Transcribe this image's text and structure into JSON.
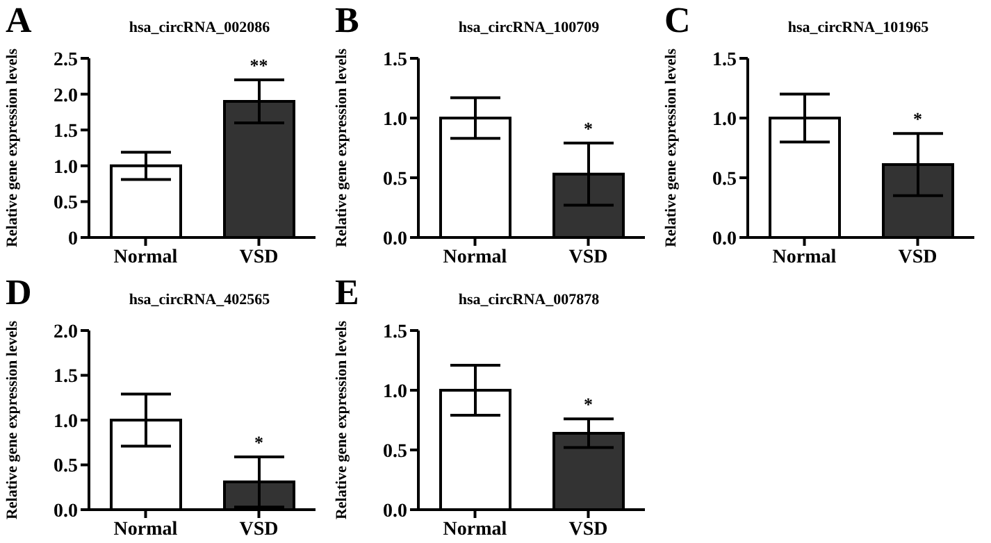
{
  "chart_data": [
    {
      "type": "bar",
      "title": "hsa_circRNA_002086",
      "ylabel": "Relative gene expression levels",
      "categories": [
        "Normal",
        "VSD"
      ],
      "values": [
        1.0,
        1.9
      ],
      "errors": [
        0.19,
        0.3
      ],
      "colors": [
        "#ffffff",
        "#333333"
      ],
      "ylim": [
        0,
        2.5
      ],
      "yticks": [
        0,
        {
          "value": 0.5,
          "label": "0.5"
        },
        {
          "value": 1,
          "label": "1.0"
        },
        {
          "value": 1.5,
          "label": "1.5"
        },
        {
          "value": 2,
          "label": "2.0"
        },
        {
          "value": 2.5,
          "label": "2.5"
        }
      ],
      "grid": false,
      "legend": false,
      "annotations": [
        "A",
        "**"
      ]
    },
    {
      "type": "bar",
      "title": "hsa_circRNA_100709",
      "ylabel": "Relative gene expression levels",
      "categories": [
        "Normal",
        "VSD"
      ],
      "values": [
        1.0,
        0.53
      ],
      "errors": [
        0.17,
        0.26
      ],
      "colors": [
        "#ffffff",
        "#333333"
      ],
      "ylim": [
        0,
        1.5
      ],
      "yticks": [
        {
          "value": 0,
          "label": "0.0"
        },
        {
          "value": 0.5,
          "label": "0.5"
        },
        {
          "value": 1,
          "label": "1.0"
        },
        {
          "value": 1.5,
          "label": "1.5"
        }
      ],
      "grid": false,
      "legend": false,
      "annotations": [
        "B",
        "*"
      ]
    },
    {
      "type": "bar",
      "title": "hsa_circRNA_101965",
      "ylabel": "Relative gene expression levels",
      "categories": [
        "Normal",
        "VSD"
      ],
      "values": [
        1.0,
        0.61
      ],
      "errors": [
        0.2,
        0.26
      ],
      "colors": [
        "#ffffff",
        "#333333"
      ],
      "ylim": [
        0,
        1.5
      ],
      "yticks": [
        {
          "value": 0,
          "label": "0.0"
        },
        {
          "value": 0.5,
          "label": "0.5"
        },
        {
          "value": 1,
          "label": "1.0"
        },
        {
          "value": 1.5,
          "label": "1.5"
        }
      ],
      "grid": false,
      "legend": false,
      "annotations": [
        "C",
        "*"
      ]
    },
    {
      "type": "bar",
      "title": "hsa_circRNA_402565",
      "ylabel": "Relative gene expression levels",
      "categories": [
        "Normal",
        "VSD"
      ],
      "values": [
        1.0,
        0.31
      ],
      "errors": [
        0.29,
        0.28
      ],
      "colors": [
        "#ffffff",
        "#333333"
      ],
      "ylim": [
        0,
        2
      ],
      "yticks": [
        {
          "value": 0,
          "label": "0.0"
        },
        {
          "value": 0.5,
          "label": "0.5"
        },
        {
          "value": 1,
          "label": "1.0"
        },
        {
          "value": 1.5,
          "label": "1.5"
        },
        {
          "value": 2,
          "label": "2.0"
        }
      ],
      "grid": false,
      "legend": false,
      "annotations": [
        "D",
        "*"
      ]
    },
    {
      "type": "bar",
      "title": "hsa_circRNA_007878",
      "ylabel": "Relative gene expression levels",
      "categories": [
        "Normal",
        "VSD"
      ],
      "values": [
        1.0,
        0.64
      ],
      "errors": [
        0.21,
        0.12
      ],
      "colors": [
        "#ffffff",
        "#333333"
      ],
      "ylim": [
        0,
        1.5
      ],
      "yticks": [
        {
          "value": 0,
          "label": "0.0"
        },
        {
          "value": 0.5,
          "label": "0.5"
        },
        {
          "value": 1,
          "label": "1.0"
        },
        {
          "value": 1.5,
          "label": "1.5"
        }
      ],
      "grid": false,
      "legend": false,
      "annotations": [
        "E",
        "*"
      ]
    }
  ]
}
